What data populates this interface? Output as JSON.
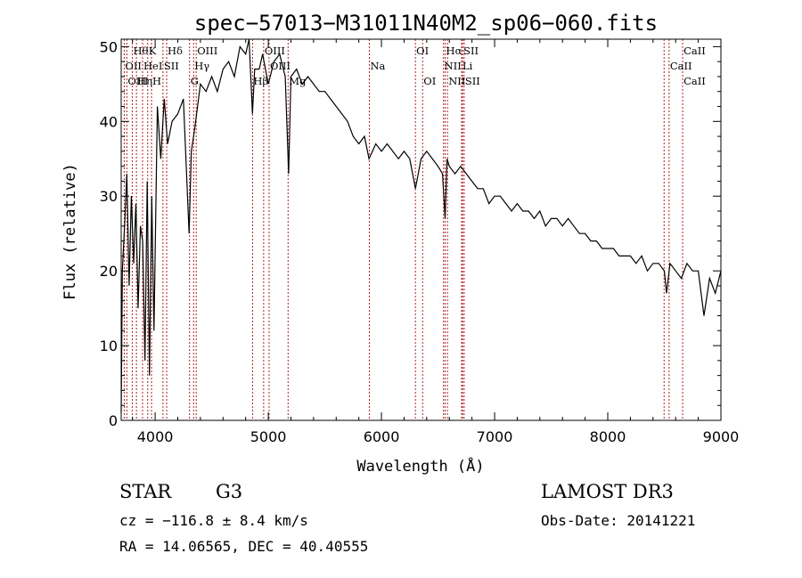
{
  "chart_data": {
    "type": "line",
    "title": "spec−57013−M31011N40M2_sp06−060.fits",
    "xlabel": "Wavelength (Å)",
    "ylabel": "Flux (relative)",
    "xlim": [
      3700,
      9000
    ],
    "ylim": [
      0,
      51
    ],
    "xticks": [
      4000,
      5000,
      6000,
      7000,
      8000,
      9000
    ],
    "yticks": [
      0,
      10,
      20,
      30,
      40,
      50
    ],
    "series": [
      {
        "name": "flux",
        "x": [
          3700,
          3710,
          3730,
          3750,
          3770,
          3790,
          3810,
          3830,
          3850,
          3870,
          3890,
          3910,
          3930,
          3950,
          3970,
          3990,
          4020,
          4050,
          4080,
          4110,
          4150,
          4200,
          4250,
          4300,
          4320,
          4350,
          4400,
          4450,
          4500,
          4550,
          4600,
          4650,
          4700,
          4750,
          4800,
          4830,
          4860,
          4880,
          4920,
          4950,
          5000,
          5050,
          5100,
          5150,
          5180,
          5200,
          5250,
          5300,
          5350,
          5400,
          5450,
          5500,
          5550,
          5600,
          5650,
          5700,
          5750,
          5800,
          5850,
          5890,
          5950,
          6000,
          6050,
          6100,
          6150,
          6200,
          6250,
          6300,
          6350,
          6400,
          6450,
          6500,
          6540,
          6563,
          6580,
          6600,
          6650,
          6700,
          6750,
          6800,
          6850,
          6900,
          6950,
          7000,
          7050,
          7100,
          7150,
          7200,
          7250,
          7300,
          7350,
          7400,
          7450,
          7500,
          7550,
          7600,
          7650,
          7700,
          7750,
          7800,
          7850,
          7900,
          7950,
          8000,
          8050,
          8100,
          8150,
          8200,
          8250,
          8300,
          8350,
          8400,
          8450,
          8500,
          8520,
          8550,
          8600,
          8650,
          8700,
          8750,
          8800,
          8850,
          8900,
          8950,
          9000
        ],
        "values": [
          1,
          20,
          26,
          33,
          18,
          30,
          21,
          29,
          15,
          26,
          24,
          8,
          32,
          6,
          30,
          12,
          42,
          35,
          43,
          37,
          40,
          41,
          43,
          25,
          36,
          39,
          45,
          44,
          46,
          44,
          47,
          48,
          46,
          50,
          49,
          51,
          41,
          47,
          47,
          49,
          45,
          48,
          49,
          46,
          33,
          46,
          47,
          45,
          46,
          45,
          44,
          44,
          43,
          42,
          41,
          40,
          38,
          37,
          38,
          35,
          37,
          36,
          37,
          36,
          35,
          36,
          35,
          31,
          35,
          36,
          35,
          34,
          33,
          27,
          35,
          34,
          33,
          34,
          33,
          32,
          31,
          31,
          29,
          30,
          30,
          29,
          28,
          29,
          28,
          28,
          27,
          28,
          26,
          27,
          27,
          26,
          27,
          26,
          25,
          25,
          24,
          24,
          23,
          23,
          23,
          22,
          22,
          22,
          21,
          22,
          20,
          21,
          21,
          20,
          17,
          21,
          20,
          19,
          21,
          20,
          20,
          14,
          19,
          17,
          20
        ]
      }
    ],
    "lines_top": [
      {
        "label": "Hθ",
        "x": 3798
      },
      {
        "label": "K",
        "x": 3934
      },
      {
        "label": "Hδ",
        "x": 4102
      },
      {
        "label": "OIII",
        "x": 4363
      },
      {
        "label": "OIII",
        "x": 4959
      },
      {
        "label": "OI",
        "x": 6300
      },
      {
        "label": "Hα",
        "x": 6563
      },
      {
        "label": "SII",
        "x": 6717
      },
      {
        "label": "CaII",
        "x": 8662
      }
    ],
    "lines_mid": [
      {
        "label": "OII",
        "x": 3727
      },
      {
        "label": "HeI",
        "x": 3889
      },
      {
        "label": "SII",
        "x": 4069
      },
      {
        "label": "Hγ",
        "x": 4340
      },
      {
        "label": "OIII",
        "x": 5007
      },
      {
        "label": "Na",
        "x": 5893
      },
      {
        "label": "NII",
        "x": 6548
      },
      {
        "label": "Li",
        "x": 6708
      },
      {
        "label": "CaII",
        "x": 8542
      }
    ],
    "lines_bot": [
      {
        "label": "OIII",
        "x": 3750
      },
      {
        "label": "Hη",
        "x": 3835
      },
      {
        "label": "H",
        "x": 3968
      },
      {
        "label": "G",
        "x": 4304
      },
      {
        "label": "Hβ",
        "x": 4861
      },
      {
        "label": "Mg",
        "x": 5175
      },
      {
        "label": "OI",
        "x": 6364
      },
      {
        "label": "NII",
        "x": 6584
      },
      {
        "label": "SII",
        "x": 6731
      },
      {
        "label": "CaII",
        "x": 8662
      }
    ],
    "marker_lines": [
      3727,
      3750,
      3798,
      3835,
      3889,
      3934,
      3968,
      4069,
      4102,
      4304,
      4340,
      4363,
      4861,
      4959,
      5007,
      5175,
      5893,
      6300,
      6364,
      6548,
      6563,
      6584,
      6708,
      6717,
      6731,
      8498,
      8542,
      8662
    ]
  },
  "info": {
    "class": "STAR",
    "subclass": "G3",
    "survey": "LAMOST DR3",
    "cz": "cz = −116.8 ± 8.4 km/s",
    "obs_date": "Obs-Date: 20141221",
    "radec": "RA =  14.06565, DEC =  40.40555"
  }
}
